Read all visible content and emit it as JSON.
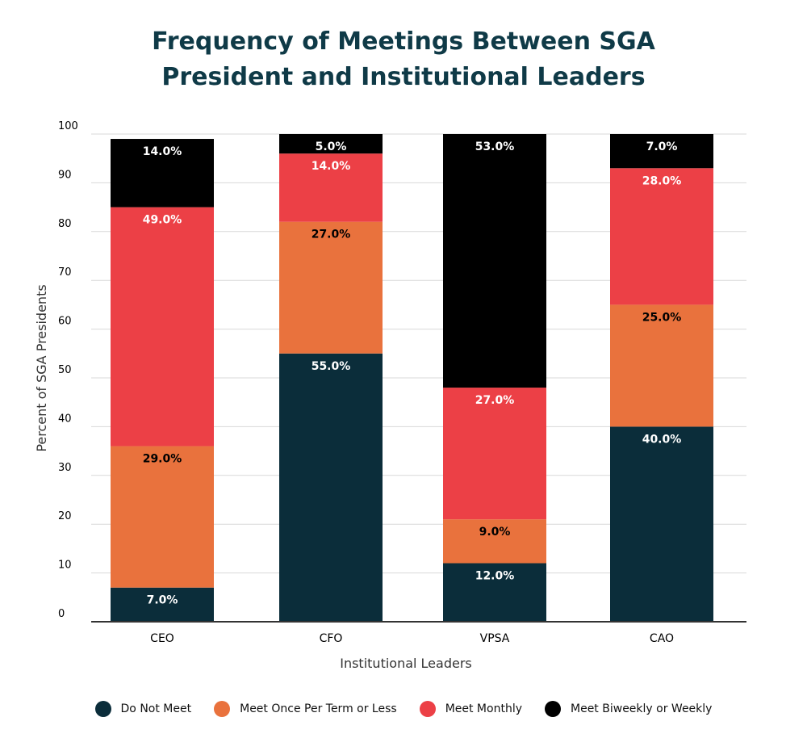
{
  "chart_data": {
    "type": "bar",
    "stacked": true,
    "title_lines": [
      "Frequency of Meetings Between SGA",
      "President and Institutional Leaders"
    ],
    "xlabel": "Institutional Leaders",
    "ylabel": "Percent of SGA Presidents",
    "ylim": [
      0,
      100
    ],
    "yticks": [
      0,
      10,
      20,
      30,
      40,
      50,
      60,
      70,
      80,
      90,
      100
    ],
    "grid": true,
    "legend_position": "bottom",
    "categories": [
      "CEO",
      "CFO",
      "VPSA",
      "CAO"
    ],
    "series": [
      {
        "name": "Do Not Meet",
        "color": "#0b2d3a",
        "label_color": "#ffffff",
        "values": [
          7.0,
          55.0,
          12.0,
          40.0
        ]
      },
      {
        "name": "Meet Once Per Term or Less",
        "color": "#e9723d",
        "label_color": "#000000",
        "values": [
          29.0,
          27.0,
          9.0,
          25.0
        ]
      },
      {
        "name": "Meet Monthly",
        "color": "#ec4046",
        "label_color": "#ffffff",
        "values": [
          49.0,
          14.0,
          27.0,
          28.0
        ]
      },
      {
        "name": "Meet Biweekly or Weekly",
        "color": "#000000",
        "label_color": "#ffffff",
        "values": [
          14.0,
          5.0,
          53.0,
          7.0
        ]
      }
    ],
    "data_labels": [
      [
        "7.0%",
        "55.0%",
        "12.0%",
        "40.0%"
      ],
      [
        "29.0%",
        "27.0%",
        "9.0%",
        "25.0%"
      ],
      [
        "49.0%",
        "14.0%",
        "27.0%",
        "28.0%"
      ],
      [
        "14.0%",
        "5.0%",
        "53.0%",
        "7.0%"
      ]
    ]
  }
}
